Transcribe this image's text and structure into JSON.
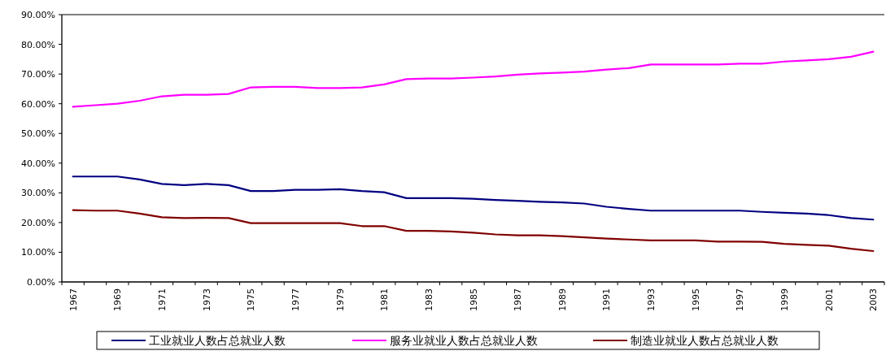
{
  "chart_data": {
    "type": "line",
    "categories": [
      "1967",
      null,
      "1969",
      null,
      "1971",
      null,
      "1973",
      null,
      "1975",
      null,
      "1977",
      null,
      "1979",
      null,
      "1981",
      null,
      "1983",
      null,
      "1985",
      null,
      "1987",
      null,
      "1989",
      null,
      "1991",
      null,
      "1993",
      null,
      "1995",
      null,
      "1997",
      null,
      "1999",
      null,
      "2001",
      null,
      "2003"
    ],
    "series": [
      {
        "name": "工业就业人数占总就业人数",
        "color": "#000080",
        "values": [
          35.5,
          35.5,
          35.5,
          34.5,
          33,
          32.6,
          33,
          32.6,
          30.6,
          30.6,
          31,
          31,
          31.2,
          30.6,
          30.2,
          28.2,
          28.2,
          28.2,
          28,
          27.6,
          27.3,
          27,
          26.8,
          26.4,
          25.3,
          24.6,
          24,
          24,
          24,
          24,
          24,
          23.6,
          23.3,
          23,
          22.5,
          21.5,
          21
        ]
      },
      {
        "name": "服务业就业人数占总就业人数",
        "color": "#ff00ff",
        "values": [
          59,
          59.5,
          60,
          61,
          62.5,
          63,
          63,
          63.3,
          65.5,
          65.7,
          65.7,
          65.3,
          65.3,
          65.5,
          66.5,
          68.3,
          68.5,
          68.5,
          68.8,
          69.2,
          69.8,
          70.2,
          70.5,
          70.8,
          71.5,
          72,
          73.2,
          73.2,
          73.2,
          73.2,
          73.5,
          73.5,
          74.2,
          74.6,
          75,
          75.8,
          77.5
        ]
      },
      {
        "name": "制造业就业人数占总就业人数",
        "color": "#800000",
        "values": [
          24.2,
          24,
          24,
          23,
          21.8,
          21.5,
          21.6,
          21.5,
          19.8,
          19.8,
          19.8,
          19.8,
          19.8,
          18.8,
          18.8,
          17.2,
          17.2,
          17,
          16.6,
          16,
          15.7,
          15.7,
          15.4,
          15,
          14.6,
          14.3,
          14,
          14,
          14,
          13.6,
          13.6,
          13.5,
          12.8,
          12.5,
          12.2,
          11.2,
          10.4
        ]
      }
    ],
    "ylim": [
      0,
      90
    ],
    "yticks": [
      {
        "value": 0,
        "label": "0.00%"
      },
      {
        "value": 10,
        "label": "10.00%"
      },
      {
        "value": 20,
        "label": "20.00%"
      },
      {
        "value": 30,
        "label": "30.00%"
      },
      {
        "value": 40,
        "label": "40.00%"
      },
      {
        "value": 50,
        "label": "50.00%"
      },
      {
        "value": 60,
        "label": "60.00%"
      },
      {
        "value": 70,
        "label": "70.00%"
      },
      {
        "value": 80,
        "label": "80.00%"
      },
      {
        "value": 90,
        "label": "90.00%"
      }
    ],
    "grid": false,
    "legend": "bottom",
    "line_style": "solid",
    "marker": "none"
  }
}
